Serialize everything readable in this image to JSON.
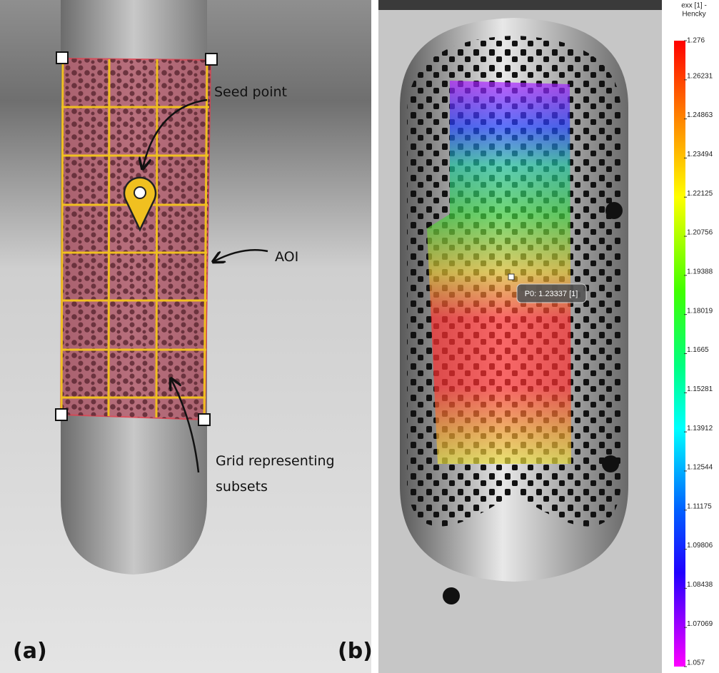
{
  "panel_a": {
    "label": "(a)",
    "annotations": {
      "seed_point": "Seed point",
      "aoi": "AOI",
      "grid": [
        "Grid representing",
        "subsets"
      ]
    }
  },
  "panel_b": {
    "label": "(b)",
    "probe": "P0: 1.23337 [1]"
  },
  "colorbar": {
    "title": [
      "exx [1] -",
      "Hencky"
    ],
    "lim": [
      1.057,
      1.276
    ],
    "ticks": [
      1.276,
      1.26231,
      1.24863,
      1.23494,
      1.22125,
      1.20756,
      1.19388,
      1.18019,
      1.1665,
      1.15281,
      1.13912,
      1.12544,
      1.11175,
      1.09806,
      1.08438,
      1.07069,
      1.057
    ]
  }
}
